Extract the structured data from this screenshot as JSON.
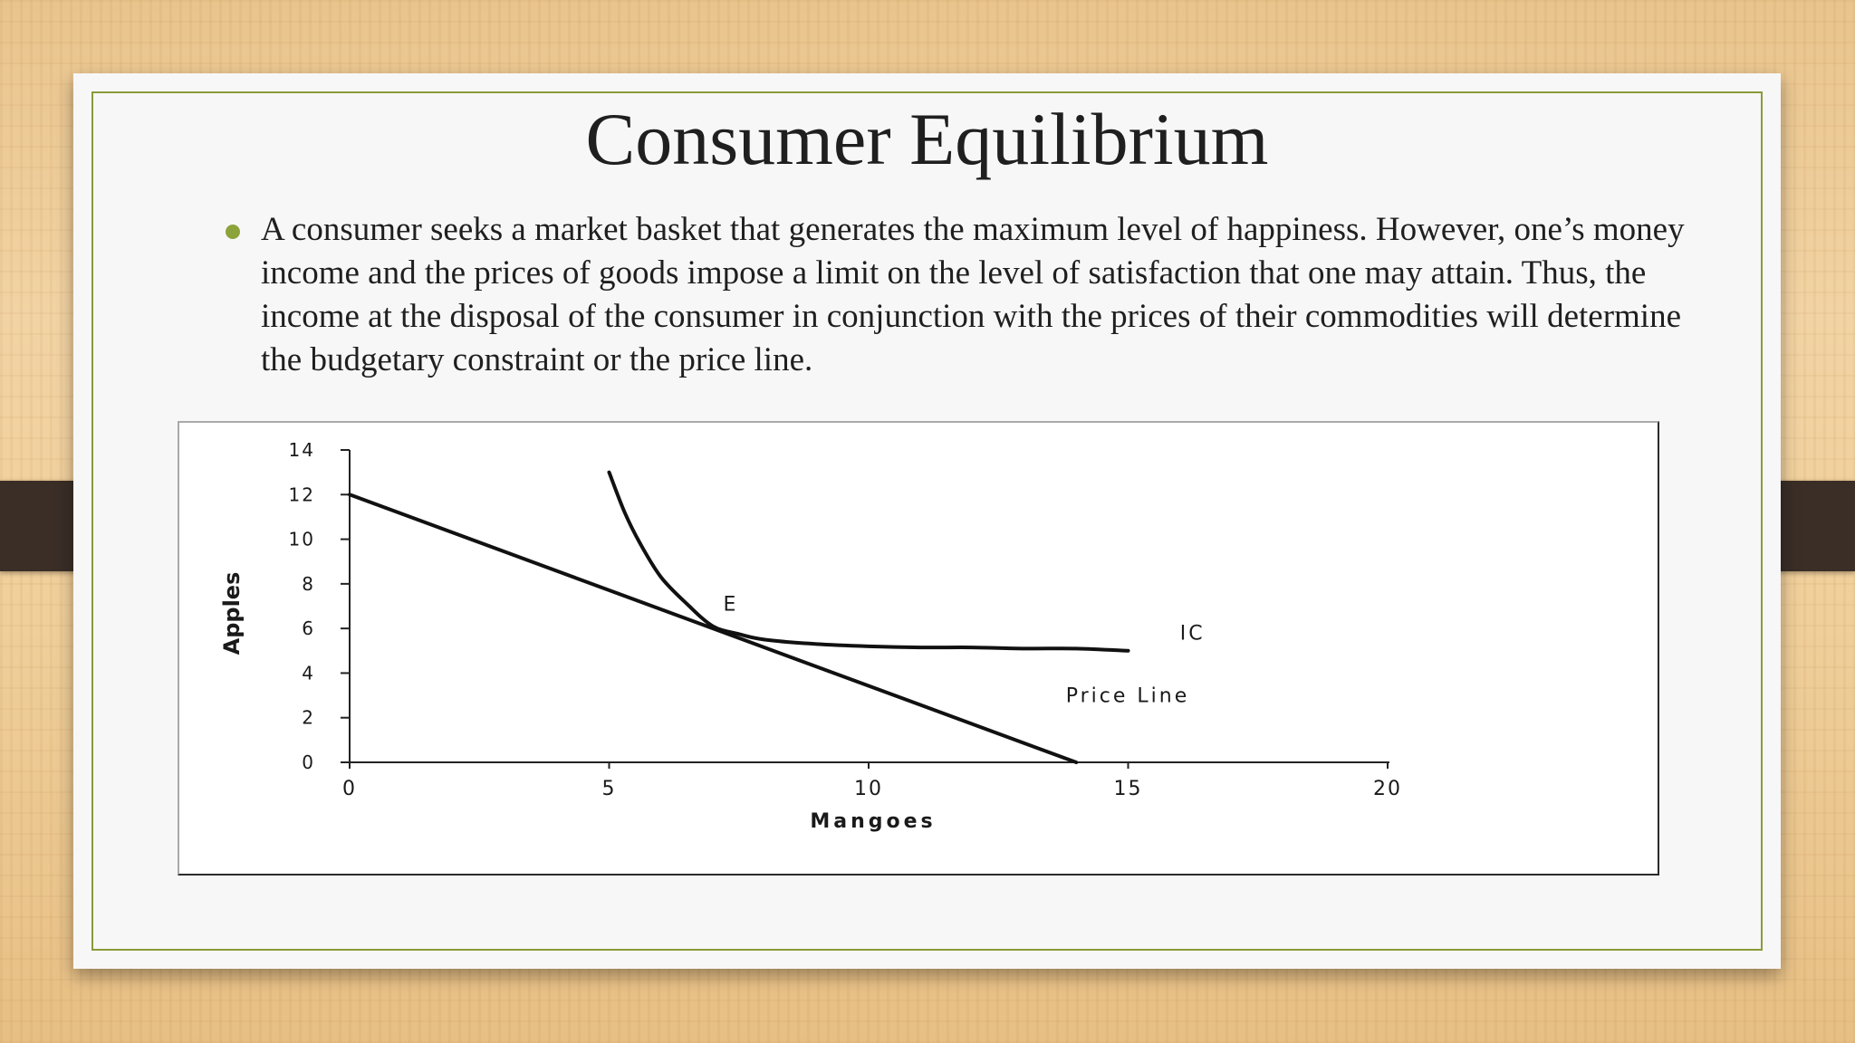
{
  "slide": {
    "title": "Consumer Equilibrium",
    "bullet": "A consumer seeks a market basket that generates the maximum level of happiness. However, one’s money income and the prices of goods impose a limit on the level of satisfaction that one may attain. Thus, the income at the disposal of the consumer in conjunction with the prices of their commodities will determine the budgetary constraint or the price line.",
    "accent_color": "#8ca33c"
  },
  "chart_data": {
    "type": "line",
    "xlabel": "Mangoes",
    "ylabel": "Apples",
    "xlim": [
      0,
      20
    ],
    "ylim": [
      0,
      14
    ],
    "xticks": [
      0,
      5,
      10,
      15,
      20
    ],
    "yticks": [
      0,
      2,
      4,
      6,
      8,
      10,
      12,
      14
    ],
    "series": [
      {
        "name": "Price Line",
        "x": [
          0,
          14
        ],
        "y": [
          12,
          0
        ]
      },
      {
        "name": "IC",
        "x": [
          5,
          5.3,
          5.6,
          6.0,
          6.5,
          7.0,
          7.5,
          8.0,
          9.0,
          10.0,
          11.0,
          12.0,
          13.0,
          14.0,
          15.0
        ],
        "y": [
          13,
          11.2,
          9.8,
          8.3,
          7.1,
          6.1,
          5.75,
          5.5,
          5.3,
          5.2,
          5.15,
          5.15,
          5.1,
          5.1,
          5.0
        ]
      }
    ],
    "annotations": [
      {
        "text": "E",
        "x": 7.2,
        "y": 6.8
      },
      {
        "text": "IC",
        "x": 16,
        "y": 5.5
      },
      {
        "text": "Price Line",
        "x": 13.8,
        "y": 2.7
      }
    ],
    "grid": false
  }
}
